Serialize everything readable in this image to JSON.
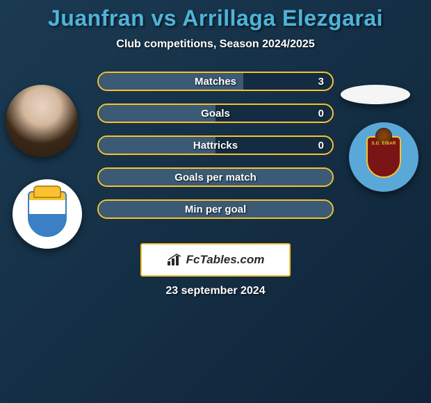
{
  "title": "Juanfran vs Arrillaga Elezgarai",
  "subtitle": "Club competitions, Season 2024/2025",
  "stats": [
    {
      "label": "Matches",
      "value": "3",
      "fill_pct": 62
    },
    {
      "label": "Goals",
      "value": "0",
      "fill_pct": 50
    },
    {
      "label": "Hattricks",
      "value": "0",
      "fill_pct": 50
    },
    {
      "label": "Goals per match",
      "value": "",
      "fill_pct": 100
    },
    {
      "label": "Min per goal",
      "value": "",
      "fill_pct": 100
    }
  ],
  "watermark": "FcTables.com",
  "date_text": "23 september 2024",
  "colors": {
    "title": "#4fb3d9",
    "border": "#f9c22e",
    "bar_fill": "#3a5a75",
    "bar_bg": "#132c42",
    "text": "#ffffff"
  }
}
